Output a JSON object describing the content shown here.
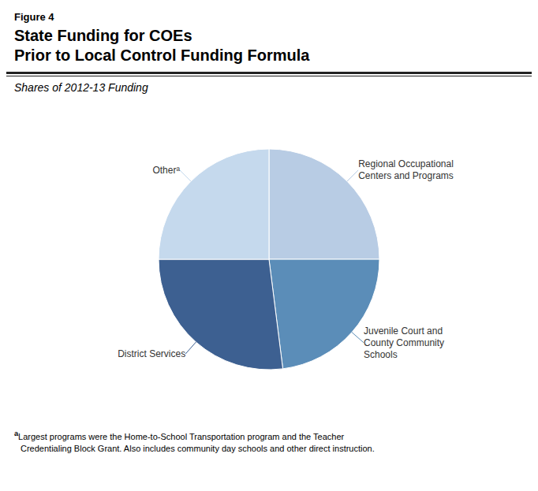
{
  "chart_data": {
    "type": "pie",
    "title": "State Funding for COEs\nPrior to Local Control Funding Formula",
    "subtitle": "Shares of 2012-13 Funding",
    "categories": [
      "Regional Occupational\nCenters and Programs",
      "Juvenile Court and\nCounty Community\nSchools",
      "District Services",
      "Otherᵃ"
    ],
    "values": [
      25,
      23,
      27,
      25
    ],
    "colors": [
      "#b8cce4",
      "#5b8db8",
      "#3d6091",
      "#c5d9ed"
    ],
    "annotations": [
      "Figure 4",
      "a",
      "Largest programs were the Home-to-School Transportation program and the Teacher",
      "Credentialing Block Grant. Also includes community day schools and other direct instruction."
    ]
  }
}
